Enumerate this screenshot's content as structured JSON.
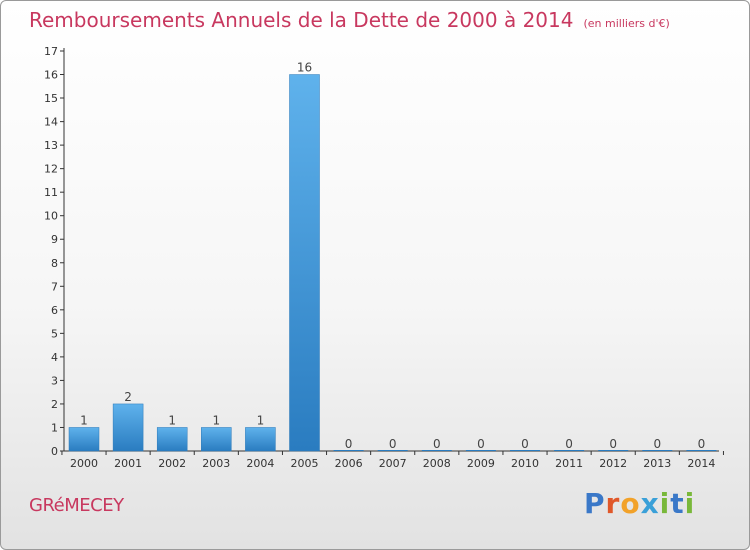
{
  "title": "Remboursements Annuels de la Dette de 2000 à 2014",
  "unit": "(en milliers d'€)",
  "commune": "GRéMECEY",
  "logo": {
    "letters": [
      {
        "char": "P",
        "color": "#3a78c8"
      },
      {
        "char": "r",
        "color": "#e0582a"
      },
      {
        "char": "o",
        "color": "#f2a22a"
      },
      {
        "char": "x",
        "color": "#3aa0d8"
      },
      {
        "char": "i",
        "color": "#79b83a"
      },
      {
        "char": "t",
        "color": "#3a78c8"
      },
      {
        "char": "i",
        "color": "#79b83a"
      }
    ]
  },
  "colors": {
    "bar_light": "#5fb2ec",
    "bar_dark": "#2a7cc0",
    "title": "#c8385f",
    "axis": "#333333"
  },
  "chart_data": {
    "type": "bar",
    "categories": [
      "2000",
      "2001",
      "2002",
      "2003",
      "2004",
      "2005",
      "2006",
      "2007",
      "2008",
      "2009",
      "2010",
      "2011",
      "2012",
      "2013",
      "2014"
    ],
    "values": [
      1,
      2,
      1,
      1,
      1,
      16,
      0,
      0,
      0,
      0,
      0,
      0,
      0,
      0,
      0
    ],
    "data_labels": [
      "1",
      "2",
      "1",
      "1",
      "1",
      "16",
      "0",
      "0",
      "0",
      "0",
      "0",
      "0",
      "0",
      "0",
      "0"
    ],
    "yticks": [
      0,
      1,
      2,
      3,
      4,
      5,
      6,
      7,
      8,
      9,
      10,
      11,
      12,
      13,
      14,
      15,
      16,
      17
    ],
    "ylim": [
      0,
      17
    ],
    "grid": false,
    "legend": "none"
  }
}
